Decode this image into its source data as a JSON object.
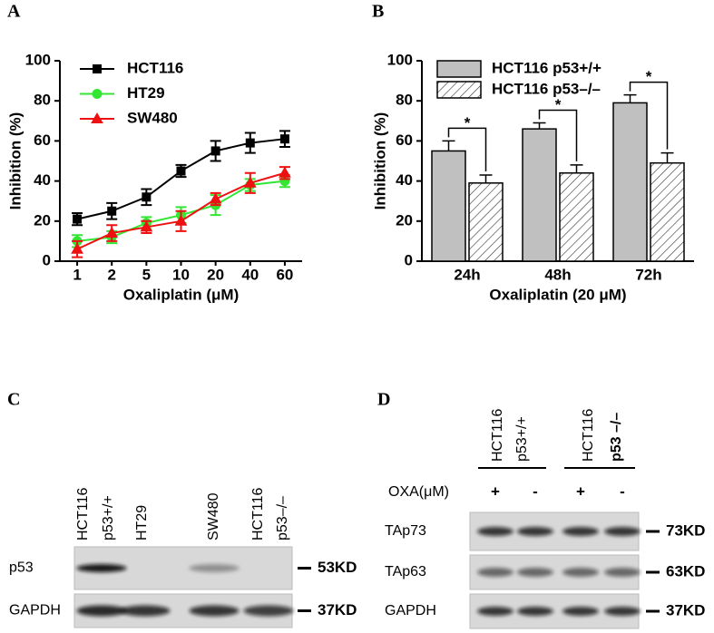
{
  "chart_data": [
    {
      "panel": "A",
      "type": "line",
      "xlabel": "Oxaliplatin (μM)",
      "ylabel": "Inhibition (%)",
      "categories": [
        "1",
        "2",
        "5",
        "10",
        "20",
        "40",
        "60"
      ],
      "ylim": [
        0,
        100
      ],
      "yticks": [
        0,
        20,
        40,
        60,
        80,
        100
      ],
      "legend": "upper left",
      "series": [
        {
          "name": "HCT116",
          "color": "#000000",
          "marker": "square",
          "values": [
            21,
            25,
            32,
            45,
            55,
            59,
            61
          ],
          "errors": [
            3,
            4,
            4,
            3,
            5,
            5,
            4
          ]
        },
        {
          "name": "HT29",
          "color": "#33e633",
          "marker": "circle",
          "values": [
            10,
            12,
            19,
            23,
            28,
            38,
            40
          ],
          "errors": [
            3,
            3,
            3,
            4,
            5,
            3,
            3
          ]
        },
        {
          "name": "SW480",
          "color": "#ee1111",
          "marker": "triangle",
          "values": [
            6,
            14,
            17,
            20,
            31,
            39,
            44
          ],
          "errors": [
            4,
            4,
            3,
            5,
            3,
            5,
            3
          ]
        }
      ]
    },
    {
      "panel": "B",
      "type": "bar",
      "xlabel": "Oxaliplatin (20 μM)",
      "ylabel": "Inhibition (%)",
      "categories": [
        "24h",
        "48h",
        "72h"
      ],
      "ylim": [
        0,
        100
      ],
      "yticks": [
        0,
        20,
        40,
        60,
        80,
        100
      ],
      "legend": "upper left",
      "series": [
        {
          "name": "HCT116 p53+/+",
          "color": "#c0c0c0",
          "pattern": "solid",
          "values": [
            55,
            66,
            79
          ],
          "errors": [
            5,
            3,
            4
          ]
        },
        {
          "name": "HCT116 p53–/–",
          "color": "#ffffff",
          "pattern": "hatch",
          "values": [
            39,
            44,
            49
          ],
          "errors": [
            4,
            4,
            5
          ]
        }
      ],
      "significance": [
        "*",
        "*",
        "*"
      ]
    }
  ],
  "blots": [
    {
      "panel": "C",
      "lanes": [
        {
          "lines": [
            "HCT116",
            "p53+/+"
          ]
        },
        {
          "lines": [
            "HT29"
          ]
        },
        {
          "lines": [
            "SW480"
          ]
        },
        {
          "lines": [
            "HCT116",
            "p53–/–"
          ]
        }
      ],
      "rows": [
        {
          "name": "p53",
          "size": "53KD"
        },
        {
          "name": "GAPDH",
          "size": "37KD"
        }
      ]
    },
    {
      "panel": "D",
      "groups": [
        {
          "lines": [
            "HCT116",
            "p53+/+"
          ]
        },
        {
          "lines": [
            "HCT116",
            "p53 –/–"
          ]
        }
      ],
      "treatment_label": "OXA(μM)",
      "treatments": [
        "+",
        "-",
        "+",
        "-"
      ],
      "rows": [
        {
          "name": "TAp73",
          "size": "73KD"
        },
        {
          "name": "TAp63",
          "size": "63KD"
        },
        {
          "name": "GAPDH",
          "size": "37KD"
        }
      ]
    }
  ]
}
